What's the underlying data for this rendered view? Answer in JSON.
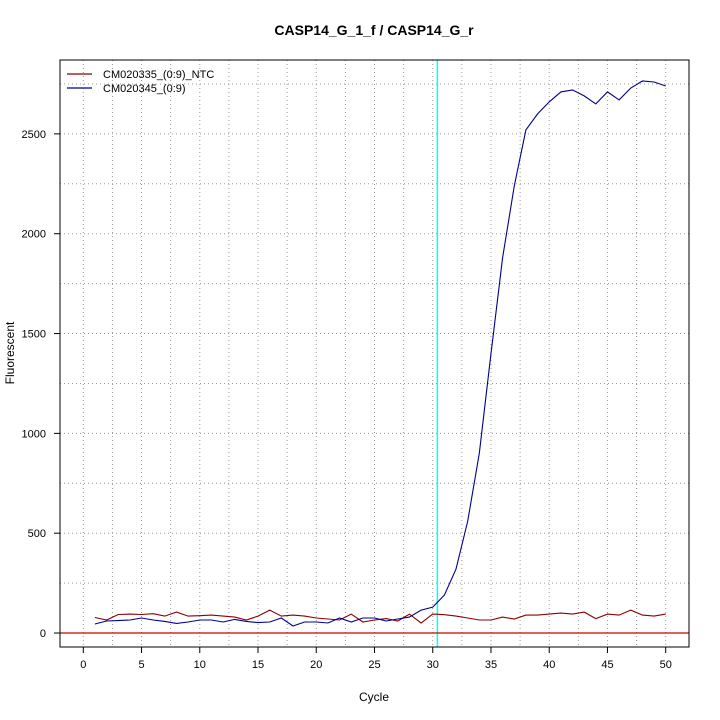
{
  "chart_data": {
    "type": "line",
    "title": "CASP14_G_1_f / CASP14_G_r",
    "xlabel": "Cycle",
    "ylabel": "Fluorescent",
    "xlim": [
      -2,
      52
    ],
    "ylim": [
      -70,
      2870
    ],
    "x_ticks": [
      0,
      5,
      10,
      15,
      20,
      25,
      30,
      35,
      40,
      45,
      50
    ],
    "y_ticks": [
      0,
      500,
      1000,
      1500,
      2000,
      2500
    ],
    "grid": true,
    "grid_style": "dotted",
    "legend_position": "top-left",
    "threshold_x": 30.4,
    "threshold_color": "#00ffff",
    "baseline_y": 0,
    "baseline_color": "#cc0000",
    "series": [
      {
        "name": "CM020335_(0:9)_NTC",
        "color": "#8b0000",
        "x": [
          1,
          2,
          3,
          4,
          5,
          6,
          7,
          8,
          9,
          10,
          11,
          12,
          13,
          14,
          15,
          16,
          17,
          18,
          19,
          20,
          21,
          22,
          23,
          24,
          25,
          26,
          27,
          28,
          29,
          30,
          31,
          32,
          33,
          34,
          35,
          36,
          37,
          38,
          39,
          40,
          41,
          42,
          43,
          44,
          45,
          46,
          47,
          48,
          49,
          50
        ],
        "y": [
          78,
          65,
          93,
          95,
          93,
          97,
          85,
          105,
          85,
          87,
          90,
          85,
          80,
          65,
          85,
          115,
          85,
          90,
          85,
          75,
          70,
          65,
          95,
          55,
          65,
          72,
          60,
          95,
          50,
          95,
          92,
          85,
          75,
          65,
          65,
          80,
          70,
          90,
          90,
          95,
          100,
          95,
          105,
          72,
          95,
          90,
          115,
          90,
          85,
          95
        ]
      },
      {
        "name": "CM020345_(0:9)",
        "color": "#00008b",
        "x": [
          1,
          2,
          3,
          4,
          5,
          6,
          7,
          8,
          9,
          10,
          11,
          12,
          13,
          14,
          15,
          16,
          17,
          18,
          19,
          20,
          21,
          22,
          23,
          24,
          25,
          26,
          27,
          28,
          29,
          30,
          31,
          32,
          33,
          34,
          35,
          36,
          37,
          38,
          39,
          40,
          41,
          42,
          43,
          44,
          45,
          46,
          47,
          48,
          49,
          50
        ],
        "y": [
          45,
          60,
          62,
          65,
          75,
          65,
          58,
          48,
          55,
          65,
          65,
          55,
          68,
          58,
          52,
          55,
          75,
          35,
          55,
          55,
          50,
          75,
          55,
          75,
          75,
          60,
          70,
          80,
          115,
          130,
          190,
          320,
          560,
          900,
          1400,
          1880,
          2240,
          2520,
          2600,
          2660,
          2710,
          2720,
          2690,
          2650,
          2710,
          2670,
          2730,
          2765,
          2760,
          2740
        ]
      }
    ]
  }
}
